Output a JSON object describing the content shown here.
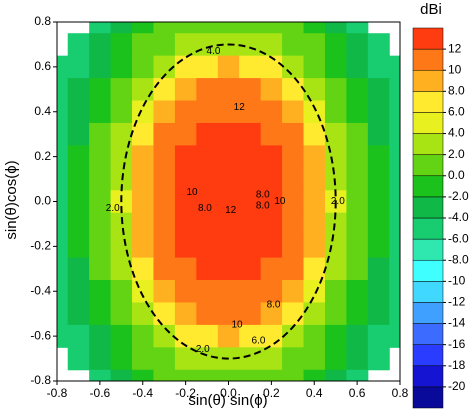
{
  "chart_data": {
    "type": "contour",
    "xlabel": "sin(θ) sin(ϕ)",
    "ylabel": "sin(θ)cos(ϕ)",
    "colorbar_title": "dBi",
    "xlim": [
      -0.8,
      0.8
    ],
    "ylim": [
      -0.8,
      0.8
    ],
    "xticks": [
      -0.8,
      -0.6,
      -0.4,
      -0.2,
      {
        "value": 0,
        "label": "0.0"
      },
      0.2,
      0.4,
      0.6,
      0.8
    ],
    "yticks": [
      -0.8,
      -0.6,
      -0.4,
      -0.2,
      {
        "value": 0,
        "label": "0.0"
      },
      0.2,
      0.4,
      0.6,
      0.8
    ],
    "x": [
      -0.8,
      -0.7,
      -0.6,
      -0.5,
      -0.4,
      -0.3,
      -0.2,
      -0.1,
      0,
      0.1,
      0.2,
      0.3,
      0.4,
      0.5,
      0.6,
      0.7,
      0.8
    ],
    "y": [
      0.8,
      0.7,
      0.6,
      0.5,
      0.4,
      0.3,
      0.2,
      0.1,
      0,
      -0.1,
      -0.2,
      -0.3,
      -0.4,
      -0.5,
      -0.6,
      -0.7,
      -0.8
    ],
    "z": [
      [
        null,
        null,
        -6,
        -4,
        -2,
        0,
        1,
        1,
        1,
        1,
        1,
        0,
        -2,
        -4,
        -6,
        null,
        null
      ],
      [
        null,
        -6,
        -4,
        -2,
        0,
        1,
        2,
        3,
        3,
        3,
        2,
        1,
        0,
        -2,
        -4,
        -6,
        null
      ],
      [
        -6,
        -5,
        -3,
        -1,
        1,
        3,
        6,
        7,
        8,
        7,
        6,
        3,
        1,
        -1,
        -3,
        -5,
        -6
      ],
      [
        -6,
        -4,
        -2,
        0,
        2,
        6,
        8,
        10,
        10,
        10,
        8,
        6,
        2,
        0,
        -2,
        -4,
        -6
      ],
      [
        -6,
        -3,
        -1,
        1,
        4,
        8,
        10,
        11,
        11,
        11,
        10,
        8,
        4,
        1,
        -1,
        -3,
        -6
      ],
      [
        -6,
        -3,
        0,
        2,
        7,
        10,
        11,
        12,
        12,
        12,
        11,
        10,
        7,
        2,
        0,
        -3,
        -6
      ],
      [
        -5,
        -2,
        0,
        3,
        8,
        10,
        12,
        12,
        12,
        12,
        12,
        10,
        8,
        3,
        0,
        -2,
        -5
      ],
      [
        -5,
        -2,
        1,
        3,
        8,
        11,
        12,
        12,
        12,
        12,
        12,
        11,
        8,
        3,
        1,
        -2,
        -5
      ],
      [
        -5,
        -2,
        1,
        4,
        9,
        11,
        12,
        12,
        12,
        12,
        12,
        11,
        9,
        4,
        1,
        -2,
        -5
      ],
      [
        -5,
        -2,
        1,
        3,
        8,
        11,
        12,
        12,
        12,
        12,
        12,
        11,
        8,
        3,
        1,
        -2,
        -5
      ],
      [
        -5,
        -2,
        0,
        3,
        8,
        10,
        12,
        12,
        12,
        12,
        12,
        10,
        8,
        3,
        0,
        -2,
        -5
      ],
      [
        -6,
        -3,
        0,
        2,
        7,
        10,
        11,
        12,
        12,
        12,
        11,
        10,
        7,
        2,
        0,
        -3,
        -6
      ],
      [
        -6,
        -3,
        -1,
        1,
        4,
        8,
        10,
        11,
        11,
        11,
        10,
        8,
        4,
        1,
        -1,
        -3,
        -6
      ],
      [
        -6,
        -4,
        -2,
        0,
        2,
        6,
        8,
        10,
        10,
        10,
        8,
        6,
        2,
        0,
        -2,
        -4,
        -6
      ],
      [
        -6,
        -5,
        -3,
        -1,
        1,
        3,
        6,
        7,
        8,
        7,
        6,
        3,
        1,
        -1,
        -3,
        -5,
        -6
      ],
      [
        null,
        -6,
        -4,
        -2,
        0,
        1,
        2,
        3,
        3,
        3,
        2,
        1,
        0,
        -2,
        -4,
        -6,
        null
      ],
      [
        null,
        null,
        -6,
        -4,
        -2,
        0,
        1,
        1,
        1,
        1,
        1,
        0,
        -2,
        -4,
        -6,
        null,
        null
      ]
    ],
    "zlim": [
      -22,
      14
    ],
    "zticks": [
      12,
      10,
      {
        "value": 8,
        "label": "8.0"
      },
      {
        "value": 6,
        "label": "6.0"
      },
      {
        "value": 4,
        "label": "4.0"
      },
      {
        "value": 2,
        "label": "2.0"
      },
      {
        "value": 0,
        "label": "0.0"
      },
      {
        "value": -2,
        "label": "-2.0"
      },
      {
        "value": -4,
        "label": "-4.0"
      },
      {
        "value": -6,
        "label": "-6.0"
      },
      {
        "value": -8,
        "label": "-8.0"
      },
      -10,
      -12,
      -14,
      -16,
      -18,
      -20
    ],
    "colors": [
      "#0a0a9a",
      "#1414d2",
      "#2a3cff",
      "#3c6cff",
      "#40a0ff",
      "#40d8ff",
      "#40ffff",
      "#2ee8b0",
      "#18cc70",
      "#10b848",
      "#1cc21c",
      "#62d414",
      "#a8e414",
      "#e8f020",
      "#ffea30",
      "#ffb020",
      "#ff7818",
      "#ff3c10"
    ],
    "reference_ellipse": {
      "rx": 0.5,
      "ry": 0.7
    },
    "annotations": [
      {
        "text": "4.0",
        "x": -0.07,
        "y": 0.67
      },
      {
        "text": "12",
        "x": 0.05,
        "y": 0.42
      },
      {
        "text": "10",
        "x": -0.17,
        "y": 0.04
      },
      {
        "text": "8.0",
        "x": -0.11,
        "y": -0.03
      },
      {
        "text": "8.0",
        "x": 0.16,
        "y": 0.03
      },
      {
        "text": "8.0",
        "x": 0.16,
        "y": -0.02
      },
      {
        "text": "10",
        "x": 0.24,
        "y": 0
      },
      {
        "text": "12",
        "x": 0.01,
        "y": -0.04
      },
      {
        "text": "2.0",
        "x": -0.54,
        "y": -0.03
      },
      {
        "text": "2.0",
        "x": 0.51,
        "y": 0
      },
      {
        "text": "8.0",
        "x": 0.21,
        "y": -0.46
      },
      {
        "text": "10",
        "x": 0.04,
        "y": -0.55
      },
      {
        "text": "6.0",
        "x": 0.14,
        "y": -0.62
      },
      {
        "text": "2.0",
        "x": -0.12,
        "y": -0.66
      }
    ]
  }
}
